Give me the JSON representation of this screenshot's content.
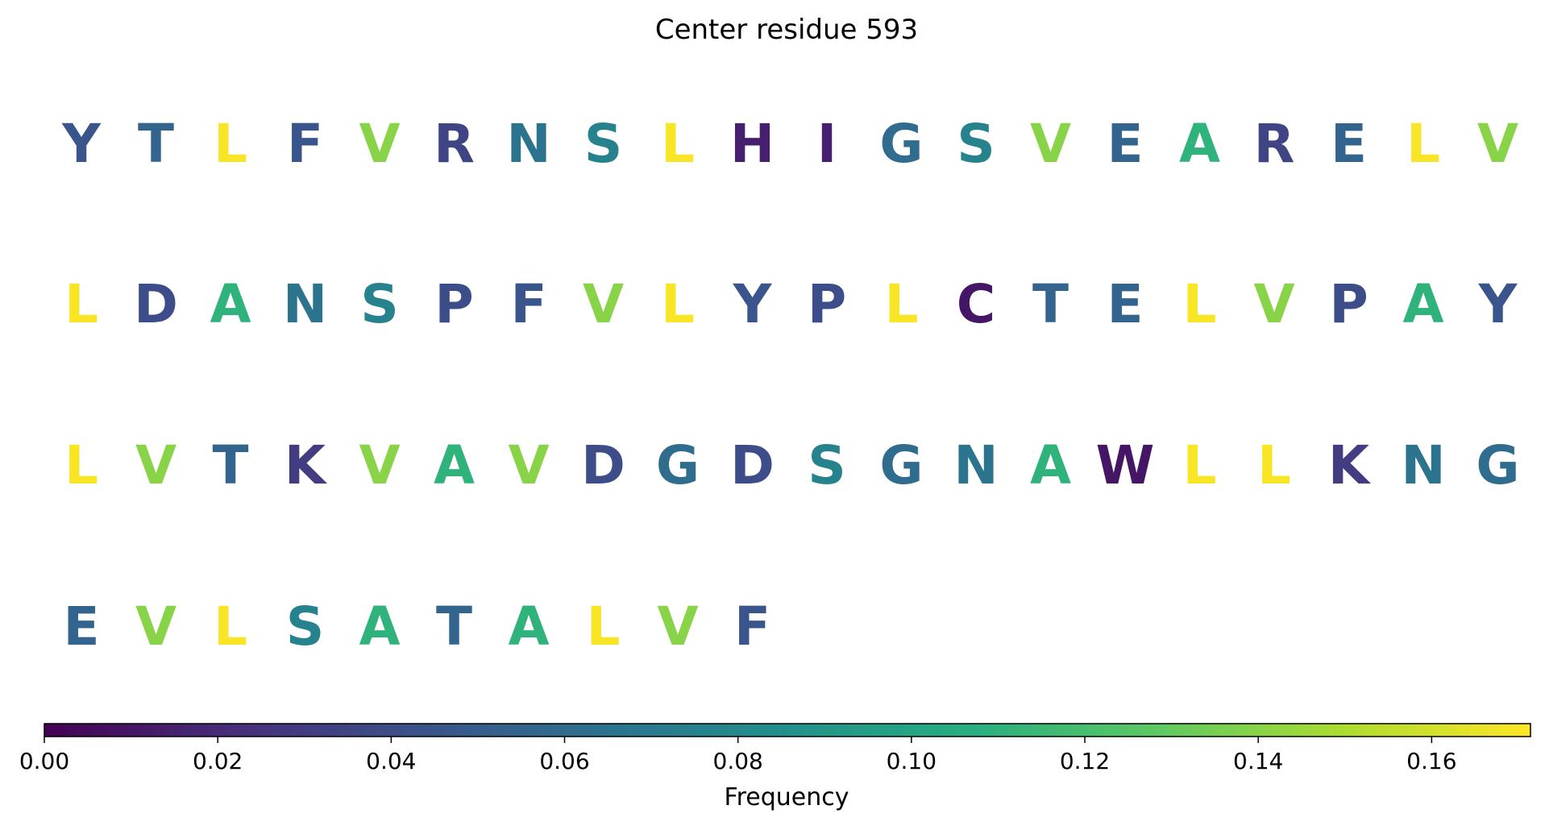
{
  "chart_data": {
    "type": "heatmap",
    "title": "Center residue 593",
    "rows": [
      {
        "letters": [
          "Y",
          "T",
          "L",
          "F",
          "V",
          "R",
          "N",
          "S",
          "L",
          "H",
          "I",
          "G",
          "S",
          "V",
          "E",
          "A",
          "R",
          "E",
          "L",
          "V"
        ],
        "values": [
          0.045,
          0.055,
          0.17,
          0.045,
          0.14,
          0.035,
          0.065,
          0.075,
          0.17,
          0.015,
          0.015,
          0.06,
          0.075,
          0.14,
          0.055,
          0.11,
          0.035,
          0.055,
          0.17,
          0.14
        ]
      },
      {
        "letters": [
          "L",
          "D",
          "A",
          "N",
          "S",
          "P",
          "F",
          "V",
          "L",
          "Y",
          "P",
          "L",
          "C",
          "T",
          "E",
          "L",
          "V",
          "P",
          "A",
          "Y"
        ],
        "values": [
          0.17,
          0.04,
          0.11,
          0.065,
          0.075,
          0.04,
          0.045,
          0.14,
          0.17,
          0.045,
          0.04,
          0.17,
          0.01,
          0.055,
          0.055,
          0.17,
          0.14,
          0.04,
          0.11,
          0.045
        ]
      },
      {
        "letters": [
          "L",
          "V",
          "T",
          "K",
          "V",
          "A",
          "V",
          "D",
          "G",
          "D",
          "S",
          "G",
          "N",
          "A",
          "W",
          "L",
          "L",
          "K",
          "N",
          "G"
        ],
        "values": [
          0.17,
          0.14,
          0.055,
          0.03,
          0.14,
          0.11,
          0.14,
          0.04,
          0.06,
          0.04,
          0.075,
          0.06,
          0.065,
          0.11,
          0.01,
          0.17,
          0.17,
          0.03,
          0.065,
          0.06
        ]
      },
      {
        "letters": [
          "E",
          "V",
          "L",
          "S",
          "A",
          "T",
          "A",
          "L",
          "V",
          "F"
        ],
        "values": [
          0.055,
          0.14,
          0.17,
          0.075,
          0.11,
          0.055,
          0.11,
          0.17,
          0.14,
          0.045
        ]
      }
    ],
    "colorbar": {
      "label": "Frequency",
      "colormap": "viridis",
      "range": [
        0,
        0.1714
      ],
      "ticks": [
        0.0,
        0.02,
        0.04,
        0.06,
        0.08,
        0.1,
        0.12,
        0.14,
        0.16
      ],
      "tick_labels": [
        "0.00",
        "0.02",
        "0.04",
        "0.06",
        "0.08",
        "0.10",
        "0.12",
        "0.14",
        "0.16"
      ]
    }
  }
}
